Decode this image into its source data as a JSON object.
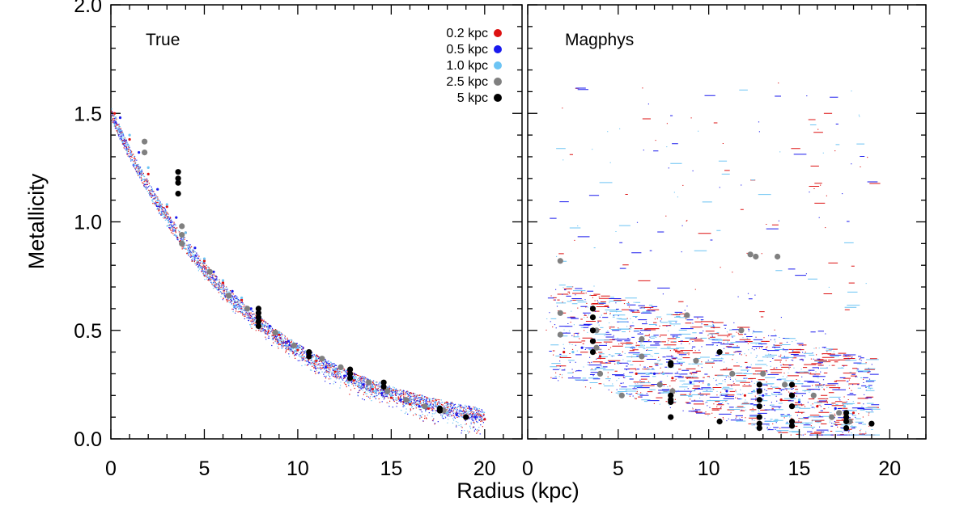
{
  "chart_data": [
    {
      "type": "scatter",
      "title": "True",
      "xlabel": "Radius (kpc)",
      "ylabel": "Metallicity",
      "xlim": [
        0,
        22
      ],
      "ylim": [
        0,
        2.0
      ],
      "x_ticks": [
        "0",
        "5",
        "10",
        "15",
        "20"
      ],
      "y_ticks": [
        "0.0",
        "0.5",
        "1.0",
        "1.5",
        "2.0"
      ],
      "legend_position": "top-right",
      "series": [
        {
          "name": "0.2 kpc",
          "color": "#dd1111",
          "x": [
            0.2,
            1,
            2,
            3,
            4,
            5,
            6,
            7,
            8,
            9,
            10,
            11,
            12,
            13,
            14,
            15,
            16,
            17,
            18,
            19,
            20
          ],
          "y": [
            1.5,
            1.38,
            1.22,
            1.07,
            0.95,
            0.82,
            0.72,
            0.64,
            0.55,
            0.48,
            0.41,
            0.36,
            0.31,
            0.27,
            0.23,
            0.19,
            0.16,
            0.14,
            0.12,
            0.1,
            0.09
          ]
        },
        {
          "name": "0.5 kpc",
          "color": "#1a1aee",
          "x": [
            0.5,
            1.5,
            2.5,
            3.5,
            4.5,
            5.5,
            6.5,
            7.5,
            8.5,
            9.5,
            10.5,
            11.5,
            12.5,
            13.5,
            14.5,
            15.5,
            16.5,
            17.5,
            18.5,
            19.5
          ],
          "y": [
            1.48,
            1.32,
            1.15,
            1.02,
            0.88,
            0.77,
            0.68,
            0.6,
            0.52,
            0.45,
            0.39,
            0.33,
            0.29,
            0.25,
            0.21,
            0.18,
            0.15,
            0.13,
            0.11,
            0.1
          ]
        },
        {
          "name": "1.0 kpc",
          "color": "#6cc4f4",
          "x": [
            1,
            2,
            3,
            4,
            5,
            6,
            7,
            8,
            9,
            10,
            11,
            12,
            13,
            14,
            15,
            16,
            17,
            18,
            19
          ],
          "y": [
            1.4,
            1.25,
            1.08,
            0.95,
            0.83,
            0.73,
            0.65,
            0.56,
            0.49,
            0.42,
            0.37,
            0.32,
            0.28,
            0.24,
            0.2,
            0.17,
            0.15,
            0.12,
            0.11
          ]
        },
        {
          "name": "2.5 kpc",
          "color": "#808080",
          "x": [
            1.8,
            1.8,
            3.8,
            3.8,
            3.8,
            5.3,
            6.3,
            7.3,
            8.8,
            9.8,
            11.3,
            12.3,
            13.8,
            14.8,
            15.8,
            16.8,
            17.8
          ],
          "y": [
            1.37,
            1.32,
            0.98,
            0.94,
            0.9,
            0.77,
            0.66,
            0.6,
            0.49,
            0.43,
            0.37,
            0.33,
            0.26,
            0.22,
            0.18,
            0.15,
            0.13
          ]
        },
        {
          "name": "5 kpc",
          "color": "#000000",
          "x": [
            3.6,
            3.6,
            3.6,
            3.6,
            7.9,
            7.9,
            7.9,
            7.9,
            7.9,
            10.6,
            10.6,
            12.8,
            12.8,
            12.8,
            14.6,
            14.6,
            17.6,
            17.6,
            19.0
          ],
          "y": [
            1.23,
            1.2,
            1.18,
            1.13,
            0.6,
            0.58,
            0.56,
            0.54,
            0.52,
            0.4,
            0.38,
            0.32,
            0.3,
            0.28,
            0.26,
            0.24,
            0.14,
            0.13,
            0.1
          ]
        }
      ]
    },
    {
      "type": "scatter",
      "title": "Magphys",
      "xlabel": "Radius (kpc)",
      "ylabel": "",
      "xlim": [
        0,
        22
      ],
      "ylim": [
        0,
        2.0
      ],
      "x_ticks": [
        "0",
        "5",
        "10",
        "15",
        "20"
      ],
      "series": [
        {
          "name": "0.2 kpc",
          "color": "#dd1111",
          "x": [
            2,
            4,
            6,
            8,
            10,
            12,
            14,
            16,
            18
          ],
          "y": [
            0.4,
            0.38,
            0.3,
            0.28,
            0.25,
            0.2,
            0.18,
            0.15,
            0.12
          ]
        },
        {
          "name": "0.5 kpc",
          "color": "#1a1aee",
          "x": [
            3,
            5,
            7,
            9,
            11,
            13,
            15,
            17
          ],
          "y": [
            0.42,
            0.35,
            0.3,
            0.26,
            0.22,
            0.2,
            0.17,
            0.14
          ]
        },
        {
          "name": "1.0 kpc",
          "color": "#6cc4f4",
          "x": [
            2.5,
            5,
            7.5,
            10,
            12.5,
            15,
            17.5
          ],
          "y": [
            0.4,
            0.35,
            0.3,
            0.25,
            0.22,
            0.18,
            0.15
          ]
        },
        {
          "name": "2.5 kpc",
          "color": "#808080",
          "x": [
            1.8,
            1.8,
            1.8,
            3.8,
            3.8,
            4.0,
            5.2,
            6.3,
            6.3,
            7.3,
            8.0,
            8.8,
            9.3,
            11.3,
            11.8,
            12.3,
            12.6,
            13.0,
            13.8,
            14.2,
            14.6,
            15.8,
            16.8,
            17.2,
            17.8
          ],
          "y": [
            0.82,
            0.58,
            0.48,
            0.5,
            0.42,
            0.3,
            0.2,
            0.46,
            0.38,
            0.25,
            0.22,
            0.57,
            0.36,
            0.3,
            0.5,
            0.85,
            0.84,
            0.3,
            0.84,
            0.25,
            0.2,
            0.2,
            0.1,
            0.12,
            0.08
          ]
        },
        {
          "name": "5 kpc",
          "color": "#000000",
          "x": [
            3.6,
            3.6,
            3.6,
            3.6,
            3.6,
            7.9,
            7.9,
            7.9,
            7.9,
            7.9,
            7.9,
            10.6,
            10.6,
            12.8,
            12.8,
            12.8,
            12.8,
            12.8,
            12.8,
            12.8,
            14.6,
            14.6,
            14.6,
            14.6,
            14.6,
            17.6,
            17.6,
            17.6,
            17.6,
            19.0
          ],
          "y": [
            0.6,
            0.56,
            0.5,
            0.45,
            0.4,
            0.35,
            0.34,
            0.2,
            0.18,
            0.17,
            0.1,
            0.4,
            0.08,
            0.25,
            0.22,
            0.18,
            0.15,
            0.1,
            0.07,
            0.05,
            0.25,
            0.2,
            0.15,
            0.08,
            0.06,
            0.12,
            0.1,
            0.08,
            0.05,
            0.07
          ]
        }
      ]
    }
  ]
}
